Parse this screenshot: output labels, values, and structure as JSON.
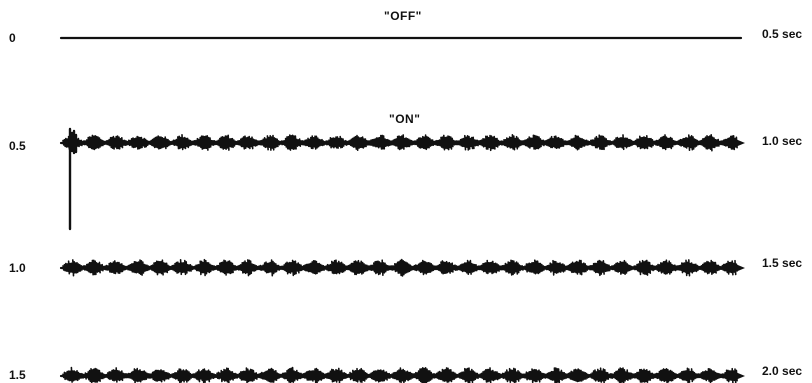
{
  "traces": [
    {
      "start_label": "0",
      "end_label": "0.5 sec",
      "state_label": "\"OFF\"",
      "signal": "flat"
    },
    {
      "start_label": "0.5",
      "end_label": "1.0 sec",
      "state_label": "\"ON\"",
      "signal": "bursts",
      "initial_spike": true
    },
    {
      "start_label": "1.0",
      "end_label": "1.5 sec",
      "state_label": "",
      "signal": "bursts"
    },
    {
      "start_label": "1.5",
      "end_label": "2.0 sec",
      "state_label": "",
      "signal": "bursts"
    }
  ],
  "colors": {
    "trace": "#111111",
    "background": "#ffffff"
  }
}
